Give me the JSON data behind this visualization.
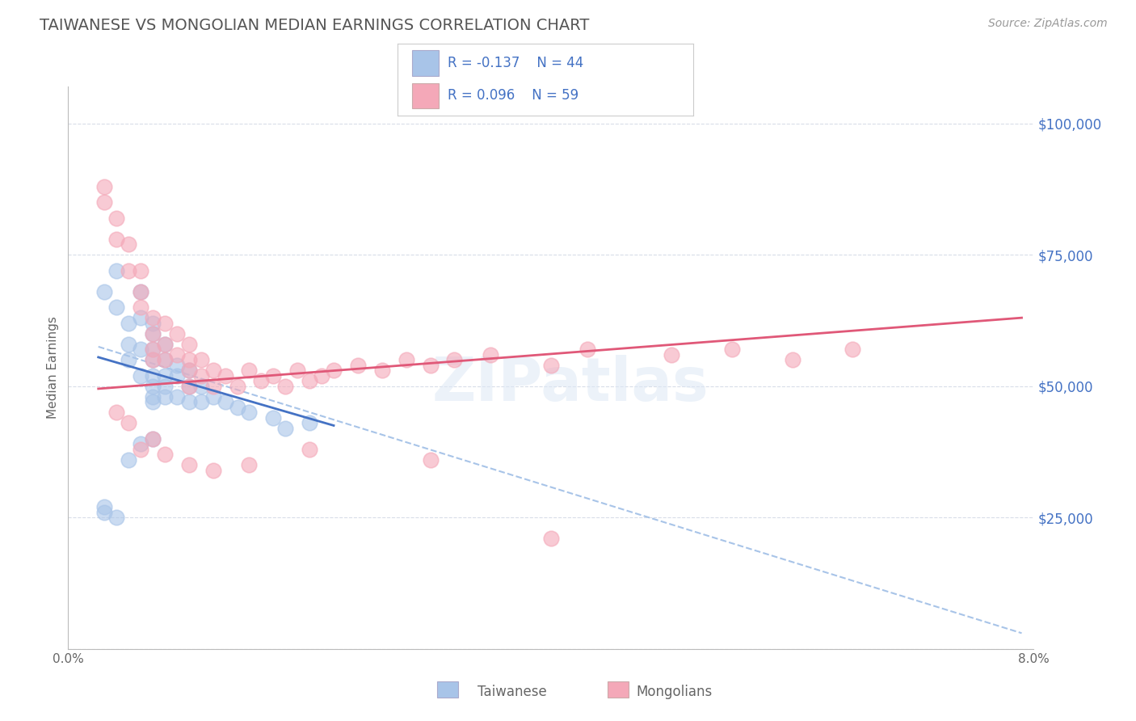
{
  "title": "TAIWANESE VS MONGOLIAN MEDIAN EARNINGS CORRELATION CHART",
  "source": "Source: ZipAtlas.com",
  "ylabel": "Median Earnings",
  "yticks": [
    0,
    25000,
    50000,
    75000,
    100000
  ],
  "ytick_labels": [
    "",
    "$25,000",
    "$50,000",
    "$75,000",
    "$100,000"
  ],
  "xlim": [
    0.0,
    0.08
  ],
  "ylim": [
    0,
    107000
  ],
  "watermark": "ZIPatlas",
  "taiwanese_color": "#a8c4e8",
  "mongolian_color": "#f4a8b8",
  "taiwanese_line_color": "#4472c4",
  "mongolian_line_color": "#e05878",
  "dashed_line_color": "#a8c4e8",
  "background_color": "#ffffff",
  "grid_color": "#d8dde8",
  "taiwanese_scatter_x": [
    0.003,
    0.004,
    0.004,
    0.005,
    0.005,
    0.005,
    0.006,
    0.006,
    0.006,
    0.006,
    0.007,
    0.007,
    0.007,
    0.007,
    0.007,
    0.007,
    0.007,
    0.007,
    0.008,
    0.008,
    0.008,
    0.008,
    0.008,
    0.009,
    0.009,
    0.009,
    0.01,
    0.01,
    0.01,
    0.011,
    0.011,
    0.012,
    0.013,
    0.014,
    0.015,
    0.017,
    0.018,
    0.02,
    0.003,
    0.003,
    0.004,
    0.005,
    0.006,
    0.007
  ],
  "taiwanese_scatter_y": [
    68000,
    65000,
    72000,
    58000,
    62000,
    55000,
    68000,
    63000,
    57000,
    52000,
    62000,
    60000,
    57000,
    55000,
    52000,
    50000,
    48000,
    47000,
    58000,
    55000,
    52000,
    50000,
    48000,
    54000,
    52000,
    48000,
    53000,
    50000,
    47000,
    50000,
    47000,
    48000,
    47000,
    46000,
    45000,
    44000,
    42000,
    43000,
    27000,
    26000,
    25000,
    36000,
    39000,
    40000
  ],
  "mongolian_scatter_x": [
    0.003,
    0.003,
    0.004,
    0.004,
    0.005,
    0.005,
    0.006,
    0.006,
    0.006,
    0.007,
    0.007,
    0.007,
    0.007,
    0.008,
    0.008,
    0.008,
    0.009,
    0.009,
    0.01,
    0.01,
    0.01,
    0.01,
    0.011,
    0.011,
    0.012,
    0.012,
    0.013,
    0.014,
    0.015,
    0.016,
    0.017,
    0.018,
    0.019,
    0.02,
    0.021,
    0.022,
    0.024,
    0.026,
    0.028,
    0.03,
    0.032,
    0.035,
    0.04,
    0.043,
    0.05,
    0.055,
    0.06,
    0.065,
    0.004,
    0.005,
    0.006,
    0.007,
    0.008,
    0.01,
    0.012,
    0.015,
    0.02,
    0.03,
    0.04
  ],
  "mongolian_scatter_y": [
    88000,
    85000,
    78000,
    82000,
    77000,
    72000,
    72000,
    68000,
    65000,
    63000,
    60000,
    57000,
    55000,
    62000,
    58000,
    55000,
    60000,
    56000,
    58000,
    55000,
    53000,
    50000,
    55000,
    52000,
    53000,
    50000,
    52000,
    50000,
    53000,
    51000,
    52000,
    50000,
    53000,
    51000,
    52000,
    53000,
    54000,
    53000,
    55000,
    54000,
    55000,
    56000,
    54000,
    57000,
    56000,
    57000,
    55000,
    57000,
    45000,
    43000,
    38000,
    40000,
    37000,
    35000,
    34000,
    35000,
    38000,
    36000,
    21000
  ],
  "tw_trend_x": [
    0.0025,
    0.022
  ],
  "tw_trend_y": [
    55500,
    42500
  ],
  "mn_trend_x": [
    0.0025,
    0.079
  ],
  "mn_trend_y": [
    49500,
    63000
  ],
  "dash_trend_x": [
    0.0025,
    0.079
  ],
  "dash_trend_y": [
    57500,
    3000
  ]
}
